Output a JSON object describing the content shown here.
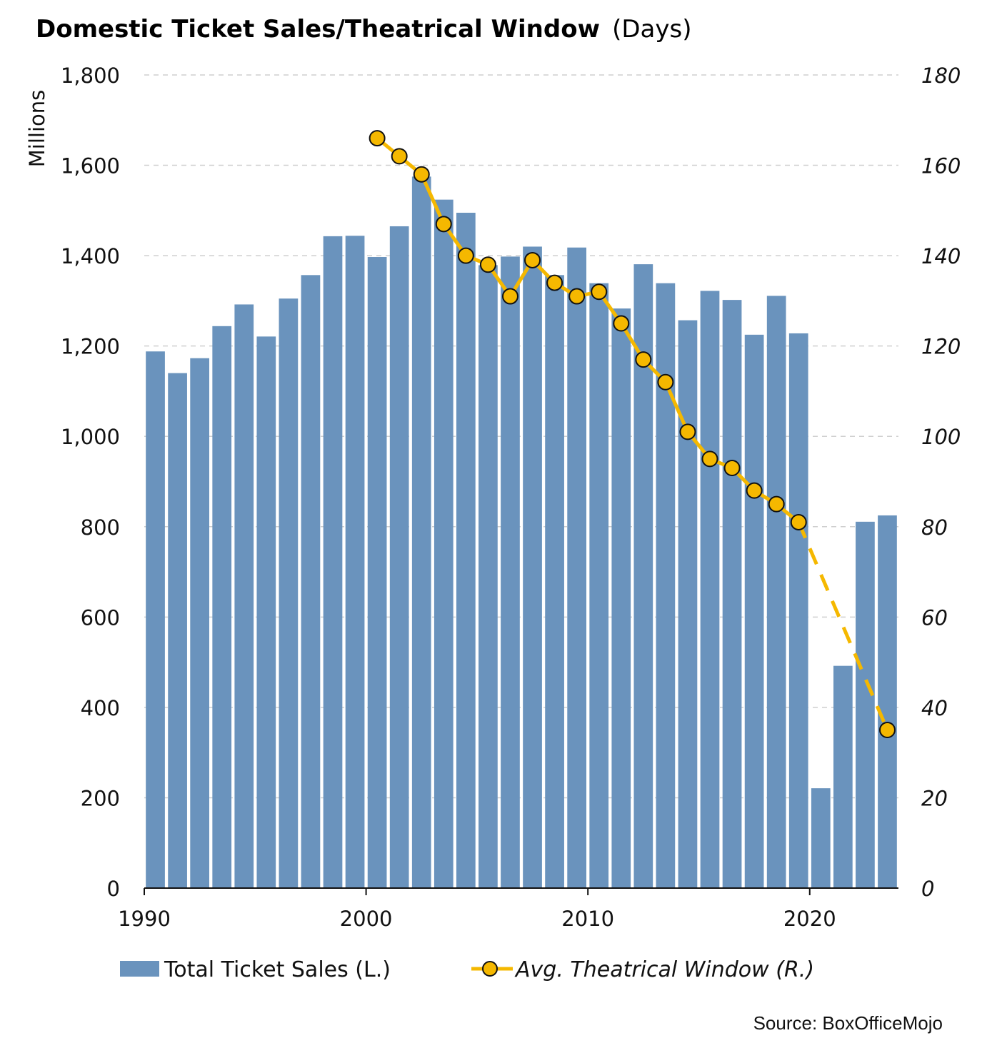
{
  "chart_data": {
    "type": "bar",
    "title": "Domestic Ticket Sales/Theatrical Window",
    "title_suffix": "(Days)",
    "ylabel": "Millions",
    "ylim": [
      0,
      1800
    ],
    "y2lim": [
      0,
      180
    ],
    "xlim": [
      1990,
      2023
    ],
    "yticks": [
      "0",
      "200",
      "400",
      "600",
      "800",
      "1,000",
      "1,200",
      "1,400",
      "1,600",
      "1,800"
    ],
    "y2ticks": [
      "0",
      "20",
      "40",
      "60",
      "80",
      "100",
      "120",
      "140",
      "160",
      "180"
    ],
    "xticks": [
      "1990",
      "2000",
      "2010",
      "2020"
    ],
    "grid": true,
    "colors": {
      "bars": "#6a93bd",
      "line": "#f5b800",
      "marker_edge": "#111111"
    },
    "series": [
      {
        "name": "Total Ticket Sales (L.)",
        "type": "bar",
        "x": [
          1990,
          1991,
          1992,
          1993,
          1994,
          1995,
          1996,
          1997,
          1998,
          1999,
          2000,
          2001,
          2002,
          2003,
          2004,
          2005,
          2006,
          2007,
          2008,
          2009,
          2010,
          2011,
          2012,
          2013,
          2014,
          2015,
          2016,
          2017,
          2018,
          2019,
          2020,
          2021,
          2022,
          2023
        ],
        "values": [
          1188,
          1140,
          1173,
          1244,
          1292,
          1221,
          1305,
          1357,
          1443,
          1444,
          1397,
          1465,
          1575,
          1524,
          1495,
          1379,
          1398,
          1420,
          1357,
          1418,
          1339,
          1283,
          1381,
          1339,
          1257,
          1322,
          1302,
          1225,
          1311,
          1228,
          221,
          492,
          811,
          825
        ]
      },
      {
        "name": "Avg. Theatrical Window (R.)",
        "type": "line",
        "axis": "right",
        "x": [
          2000,
          2001,
          2002,
          2003,
          2004,
          2005,
          2006,
          2007,
          2008,
          2009,
          2010,
          2011,
          2012,
          2013,
          2014,
          2015,
          2016,
          2017,
          2018,
          2019,
          2023
        ],
        "values": [
          166,
          162,
          158,
          147,
          140,
          138,
          131,
          139,
          134,
          131,
          132,
          125,
          117,
          112,
          101,
          95,
          93,
          88,
          85,
          81,
          35
        ],
        "dashed_from": 2019
      }
    ],
    "legend": [
      "Total Ticket Sales (L.)",
      "Avg. Theatrical Window (R.)"
    ],
    "legend_position": "bottom-center",
    "source": "Source: BoxOfficeMojo"
  }
}
